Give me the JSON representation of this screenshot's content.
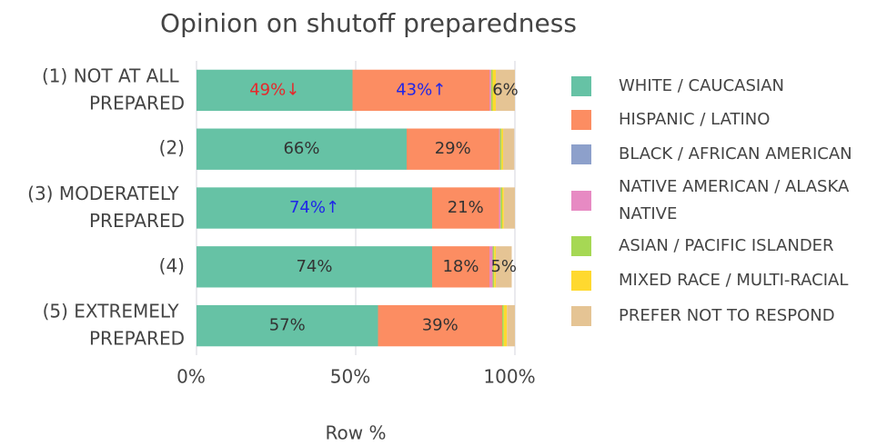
{
  "chart_data": {
    "type": "stacked_bar_horizontal",
    "title": "Opinion on shutoff preparedness",
    "x_axis_label": "Row %",
    "categories": [
      "(1) NOT AT ALL PREPARED",
      "(2)",
      "(3) MODERATELY PREPARED",
      "(4)",
      "(5) EXTREMELY PREPARED"
    ],
    "xlim": [
      0,
      100
    ],
    "xticks": [
      {
        "value": 0,
        "label": "0%"
      },
      {
        "value": 50,
        "label": "50%"
      },
      {
        "value": 100,
        "label": "100%"
      }
    ],
    "grid": true,
    "legend": "right",
    "series": [
      {
        "name": "WHITE / CAUCASIAN",
        "color": "#66c2a5",
        "values": [
          49,
          66,
          74,
          74,
          57
        ],
        "value_labels": [
          "49%↓",
          "66%",
          "74%↑",
          "74%",
          "57%"
        ],
        "label_colors": [
          "#e8262a",
          null,
          "#1f26e8",
          null,
          null
        ]
      },
      {
        "name": "HISPANIC / LATINO",
        "color": "#fc8d62",
        "values": [
          43,
          29,
          21,
          18,
          39
        ],
        "value_labels": [
          "43%↑",
          "29%",
          "21%",
          "18%",
          "39%"
        ],
        "label_colors": [
          "#1f26e8",
          null,
          null,
          null,
          null
        ]
      },
      {
        "name": "BLACK / AFRICAN AMERICAN",
        "color": "#8da0cb",
        "values": [
          0,
          0,
          0,
          0,
          0
        ]
      },
      {
        "name": "NATIVE AMERICAN / ALASKA NATIVE",
        "color": "#e78ac3",
        "values": [
          0.5,
          0.3,
          0.5,
          1,
          0
        ]
      },
      {
        "name": "ASIAN / PACIFIC ISLANDER",
        "color": "#a6d854",
        "values": [
          0.5,
          0.5,
          0.5,
          0.5,
          0.5
        ]
      },
      {
        "name": "MIXED RACE / MULTI-RACIAL",
        "color": "#ffd92f",
        "values": [
          1,
          0.5,
          0.5,
          0.5,
          1
        ]
      },
      {
        "name": "PREFER NOT TO RESPOND",
        "color": "#e5c494",
        "values": [
          6,
          3.5,
          3.5,
          5,
          2.5
        ],
        "value_labels": [
          "6%",
          null,
          null,
          "5%",
          null
        ]
      }
    ]
  }
}
